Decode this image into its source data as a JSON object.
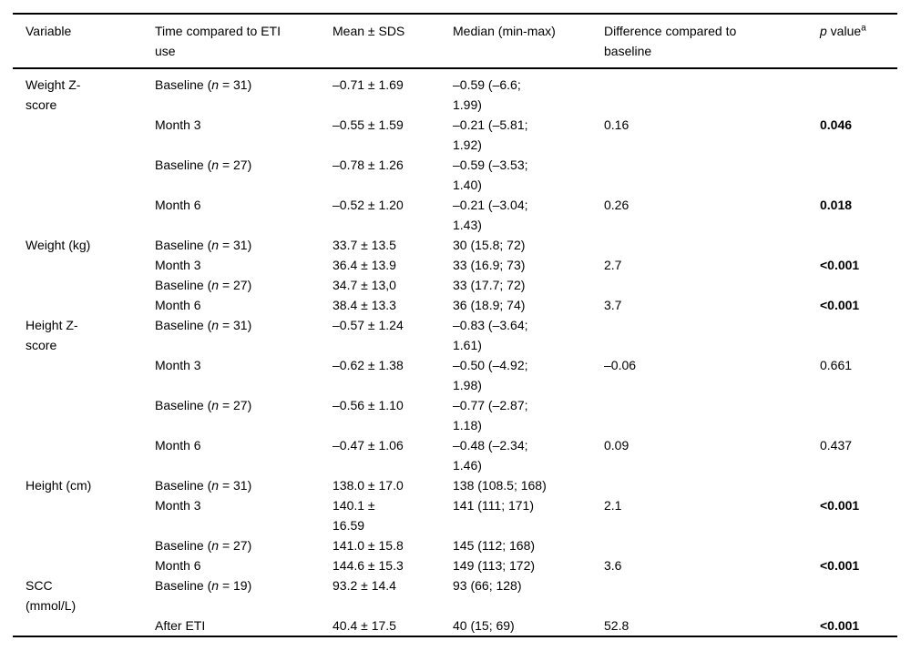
{
  "table": {
    "columns": [
      {
        "label": "Variable"
      },
      {
        "label": "Time compared to ETI\nuse"
      },
      {
        "label": "Mean ± SDS"
      },
      {
        "label": "Median (min-max)"
      },
      {
        "label": "Difference compared to\nbaseline"
      },
      {
        "label_italic": "p",
        "label_rest": " value",
        "label_sup": "a"
      }
    ],
    "rows": [
      {
        "variable": "Weight Z-\nscore",
        "time_pre": "Baseline (",
        "time_n": "n",
        "time_post": " = 31)",
        "mean": "–0.71 ± 1.69",
        "median": "–0.59 (–6.6;\n1.99)",
        "difference": "",
        "p": "",
        "p_bold": false
      },
      {
        "variable": "",
        "time_pre": "Month 3",
        "time_n": "",
        "time_post": "",
        "mean": "–0.55 ± 1.59",
        "median": "–0.21 (–5.81;\n1.92)",
        "difference": "0.16",
        "p": "0.046",
        "p_bold": true
      },
      {
        "variable": "",
        "time_pre": "Baseline (",
        "time_n": "n",
        "time_post": " = 27)",
        "mean": "–0.78 ± 1.26",
        "median": "–0.59 (–3.53;\n1.40)",
        "difference": "",
        "p": "",
        "p_bold": false
      },
      {
        "variable": "",
        "time_pre": "Month 6",
        "time_n": "",
        "time_post": "",
        "mean": "–0.52 ± 1.20",
        "median": "–0.21 (–3.04;\n1.43)",
        "difference": "0.26",
        "p": "0.018",
        "p_bold": true
      },
      {
        "variable": "Weight (kg)",
        "time_pre": "Baseline (",
        "time_n": "n",
        "time_post": " = 31)",
        "mean": "33.7 ± 13.5",
        "median": "30 (15.8; 72)",
        "difference": "",
        "p": "",
        "p_bold": false
      },
      {
        "variable": "",
        "time_pre": "Month 3",
        "time_n": "",
        "time_post": "",
        "mean": "36.4 ± 13.9",
        "median": "33 (16.9; 73)",
        "difference": "2.7",
        "p": "<0.001",
        "p_bold": true
      },
      {
        "variable": "",
        "time_pre": "Baseline (",
        "time_n": "n",
        "time_post": " = 27)",
        "mean": "34.7 ± 13,0",
        "median": "33 (17.7; 72)",
        "difference": "",
        "p": "",
        "p_bold": false
      },
      {
        "variable": "",
        "time_pre": "Month 6",
        "time_n": "",
        "time_post": "",
        "mean": "38.4 ± 13.3",
        "median": "36 (18.9; 74)",
        "difference": "3.7",
        "p": "<0.001",
        "p_bold": true
      },
      {
        "variable": "Height Z-\nscore",
        "time_pre": "Baseline (",
        "time_n": "n",
        "time_post": " = 31)",
        "mean": "–0.57 ± 1.24",
        "median": "–0.83 (–3.64;\n1.61)",
        "difference": "",
        "p": "",
        "p_bold": false
      },
      {
        "variable": "",
        "time_pre": "Month 3",
        "time_n": "",
        "time_post": "",
        "mean": "–0.62 ± 1.38",
        "median": "–0.50 (–4.92;\n1.98)",
        "difference": "–0.06",
        "p": "0.661",
        "p_bold": false
      },
      {
        "variable": "",
        "time_pre": "Baseline (",
        "time_n": "n",
        "time_post": " = 27)",
        "mean": "–0.56 ± 1.10",
        "median": "–0.77 (–2.87;\n1.18)",
        "difference": "",
        "p": "",
        "p_bold": false
      },
      {
        "variable": "",
        "time_pre": "Month 6",
        "time_n": "",
        "time_post": "",
        "mean": "–0.47 ± 1.06",
        "median": "–0.48 (–2.34;\n1.46)",
        "difference": "0.09",
        "p": "0.437",
        "p_bold": false
      },
      {
        "variable": "Height (cm)",
        "time_pre": "Baseline (",
        "time_n": "n",
        "time_post": " = 31)",
        "mean": "138.0 ± 17.0",
        "median": "138 (108.5; 168)",
        "difference": "",
        "p": "",
        "p_bold": false
      },
      {
        "variable": "",
        "time_pre": "Month 3",
        "time_n": "",
        "time_post": "",
        "mean": "140.1 ±\n16.59",
        "median": "141 (111; 171)",
        "difference": "2.1",
        "p": "<0.001",
        "p_bold": true
      },
      {
        "variable": "",
        "time_pre": "Baseline (",
        "time_n": "n",
        "time_post": " = 27)",
        "mean": "141.0 ± 15.8",
        "median": "145 (112; 168)",
        "difference": "",
        "p": "",
        "p_bold": false
      },
      {
        "variable": "",
        "time_pre": "Month 6",
        "time_n": "",
        "time_post": "",
        "mean": "144.6 ± 15.3",
        "median": "149 (113; 172)",
        "difference": "3.6",
        "p": "<0.001",
        "p_bold": true
      },
      {
        "variable": "SCC\n(mmol/L)",
        "time_pre": "Baseline (",
        "time_n": "n",
        "time_post": " = 19)",
        "mean": "93.2 ± 14.4",
        "median": "93 (66; 128)",
        "difference": "",
        "p": "",
        "p_bold": false
      },
      {
        "variable": "",
        "time_pre": "After ETI",
        "time_n": "",
        "time_post": "",
        "mean": "40.4 ± 17.5",
        "median": "40 (15; 69)",
        "difference": "52.8",
        "p": "<0.001",
        "p_bold": true
      }
    ]
  }
}
